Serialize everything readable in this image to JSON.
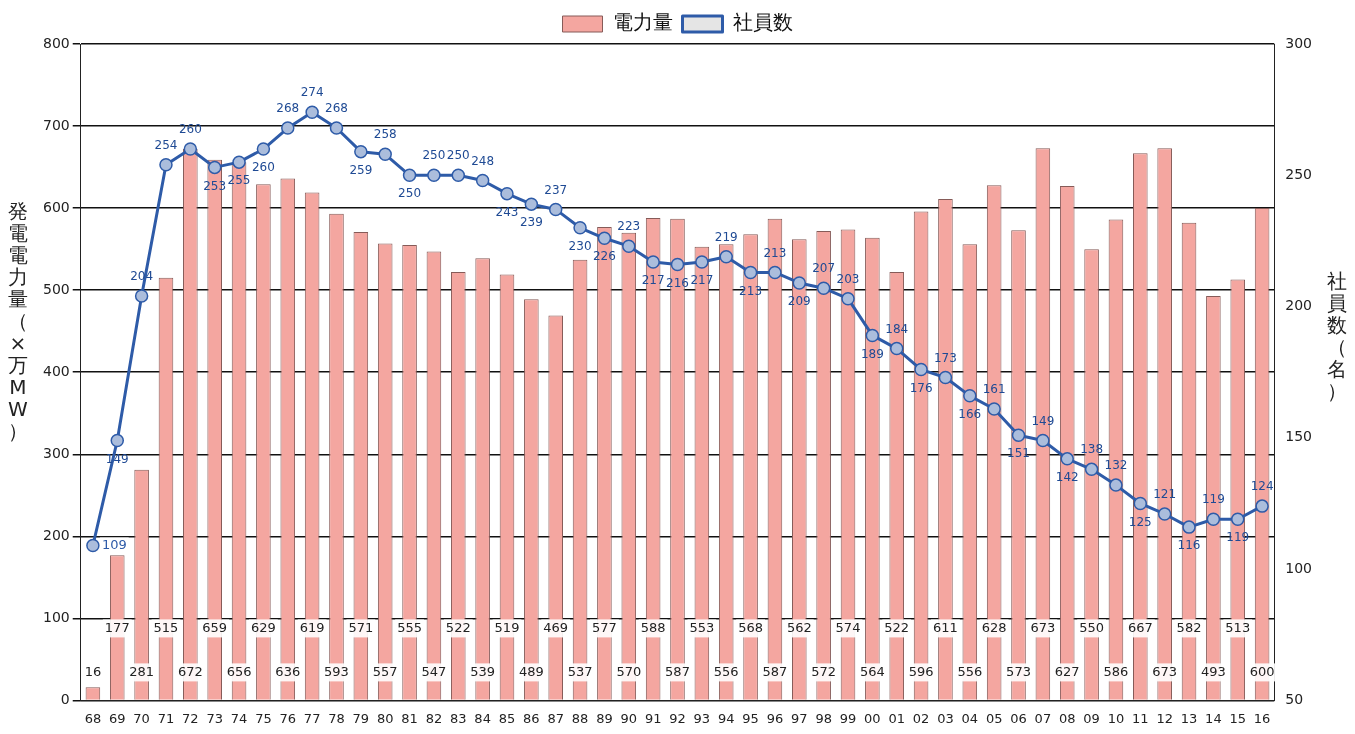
{
  "chart_data": {
    "type": "bar",
    "ylabel": "発電電力量（×万MW）",
    "y2label": "社員数（名）",
    "categories": [
      "68",
      "69",
      "70",
      "71",
      "72",
      "73",
      "74",
      "75",
      "76",
      "77",
      "78",
      "79",
      "80",
      "81",
      "82",
      "83",
      "84",
      "85",
      "86",
      "87",
      "88",
      "89",
      "90",
      "91",
      "92",
      "93",
      "94",
      "95",
      "96",
      "97",
      "98",
      "99",
      "00",
      "01",
      "02",
      "03",
      "04",
      "05",
      "06",
      "07",
      "08",
      "09",
      "10",
      "11",
      "12",
      "13",
      "14",
      "15",
      "16"
    ],
    "series": [
      {
        "name": "電力量",
        "color": "#f4a6a0",
        "values": [
          16,
          177,
          281,
          515,
          672,
          659,
          656,
          629,
          636,
          619,
          593,
          571,
          557,
          555,
          547,
          522,
          539,
          519,
          489,
          469,
          537,
          577,
          570,
          588,
          587,
          553,
          556,
          568,
          587,
          562,
          572,
          574,
          564,
          522,
          596,
          611,
          556,
          628,
          573,
          673,
          627,
          550,
          586,
          667,
          673,
          582,
          493,
          513,
          600
        ]
      },
      {
        "name": "社員数",
        "type": "line",
        "axis": "y2",
        "color": "#2e5ba8",
        "values": [
          109,
          149,
          204,
          254,
          260,
          253,
          255,
          260,
          268,
          274,
          268,
          259,
          258,
          250,
          250,
          250,
          248,
          243,
          239,
          237,
          230,
          226,
          223,
          217,
          216,
          217,
          219,
          213,
          213,
          209,
          207,
          203,
          189,
          184,
          176,
          173,
          166,
          161,
          151,
          149,
          142,
          138,
          132,
          125,
          121,
          116,
          119,
          119,
          124
        ]
      }
    ],
    "ylim": [
      0,
      800
    ],
    "yticks": [
      0,
      100,
      200,
      300,
      400,
      500,
      600,
      700,
      800
    ],
    "y2lim": [
      50,
      300
    ],
    "y2ticks": [
      50,
      100,
      150,
      200,
      250,
      300
    ],
    "grid": "y",
    "legend": "top",
    "marker": "circle",
    "line_style": "solid",
    "data_labels": true
  }
}
